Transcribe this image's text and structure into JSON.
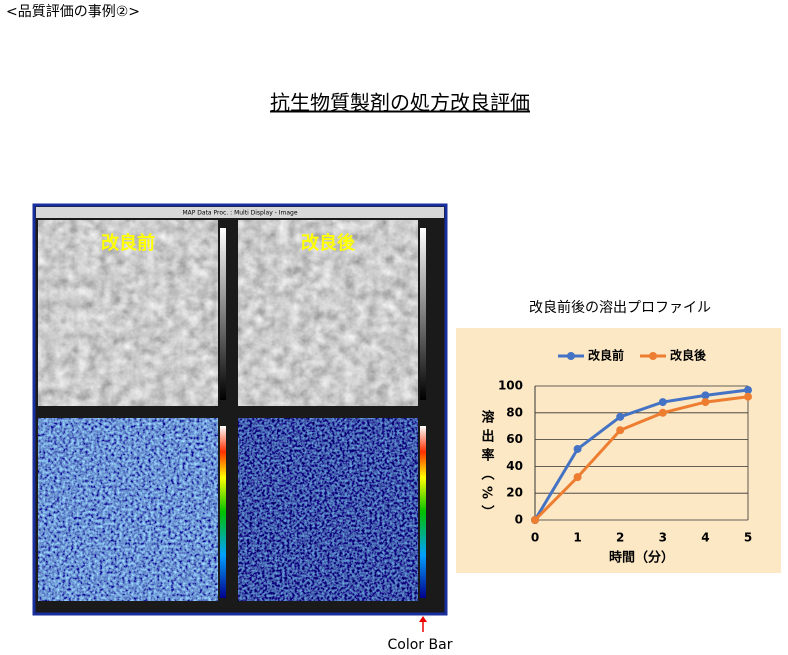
{
  "header": {
    "label": "<品質評価の事例②>",
    "title": "抗生物質製剤の処方改良評価"
  },
  "image_panel": {
    "window_title": "MAP Data Proc. : Multi Display - Image",
    "left_label": "改良前",
    "right_label": "改良後",
    "annotation": "Color Bar"
  },
  "chart_data": {
    "type": "line",
    "title": "改良前後の溶出プロファイル",
    "x_label": "時間（分）",
    "y_label": "溶出率（%）",
    "x": [
      0,
      1,
      2,
      3,
      4,
      5
    ],
    "series": [
      {
        "name": "改良前",
        "color": "#4472c4",
        "values": [
          0,
          53,
          77,
          88,
          93,
          97
        ]
      },
      {
        "name": "改良後",
        "color": "#ed7d31",
        "values": [
          0,
          32,
          67,
          80,
          88,
          92
        ]
      }
    ],
    "xlim": [
      0,
      5
    ],
    "xticks": [
      0,
      1,
      2,
      3,
      4,
      5
    ],
    "ylim": [
      0,
      100
    ],
    "yticks": [
      0,
      20,
      40,
      60,
      80,
      100
    ],
    "grid": true,
    "legend": "top"
  }
}
